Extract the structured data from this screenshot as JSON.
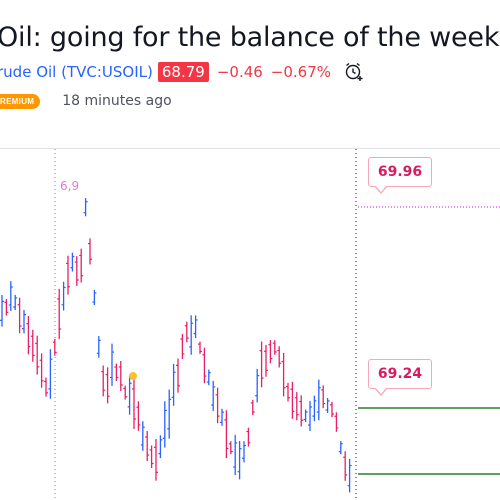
{
  "post": {
    "title": "Oil: going for the balance of the week test.",
    "symbol_name": "rude Oil",
    "symbol_ticker": "(TVC:USOIL)",
    "price": "68.79",
    "change": "−0.46",
    "change_pct": "−0.67%",
    "badge": "REMIUM",
    "time_ago": "18 minutes ago"
  },
  "chart": {
    "annotation_label": "6,9",
    "callouts": [
      {
        "label": "69.96"
      },
      {
        "label": "69.24"
      }
    ],
    "colors": {
      "up": "#2962ff",
      "down": "#e91e63",
      "target_line": "#e040fb",
      "support_line": "#2e7d32",
      "marker": "#fbc02d"
    }
  }
}
